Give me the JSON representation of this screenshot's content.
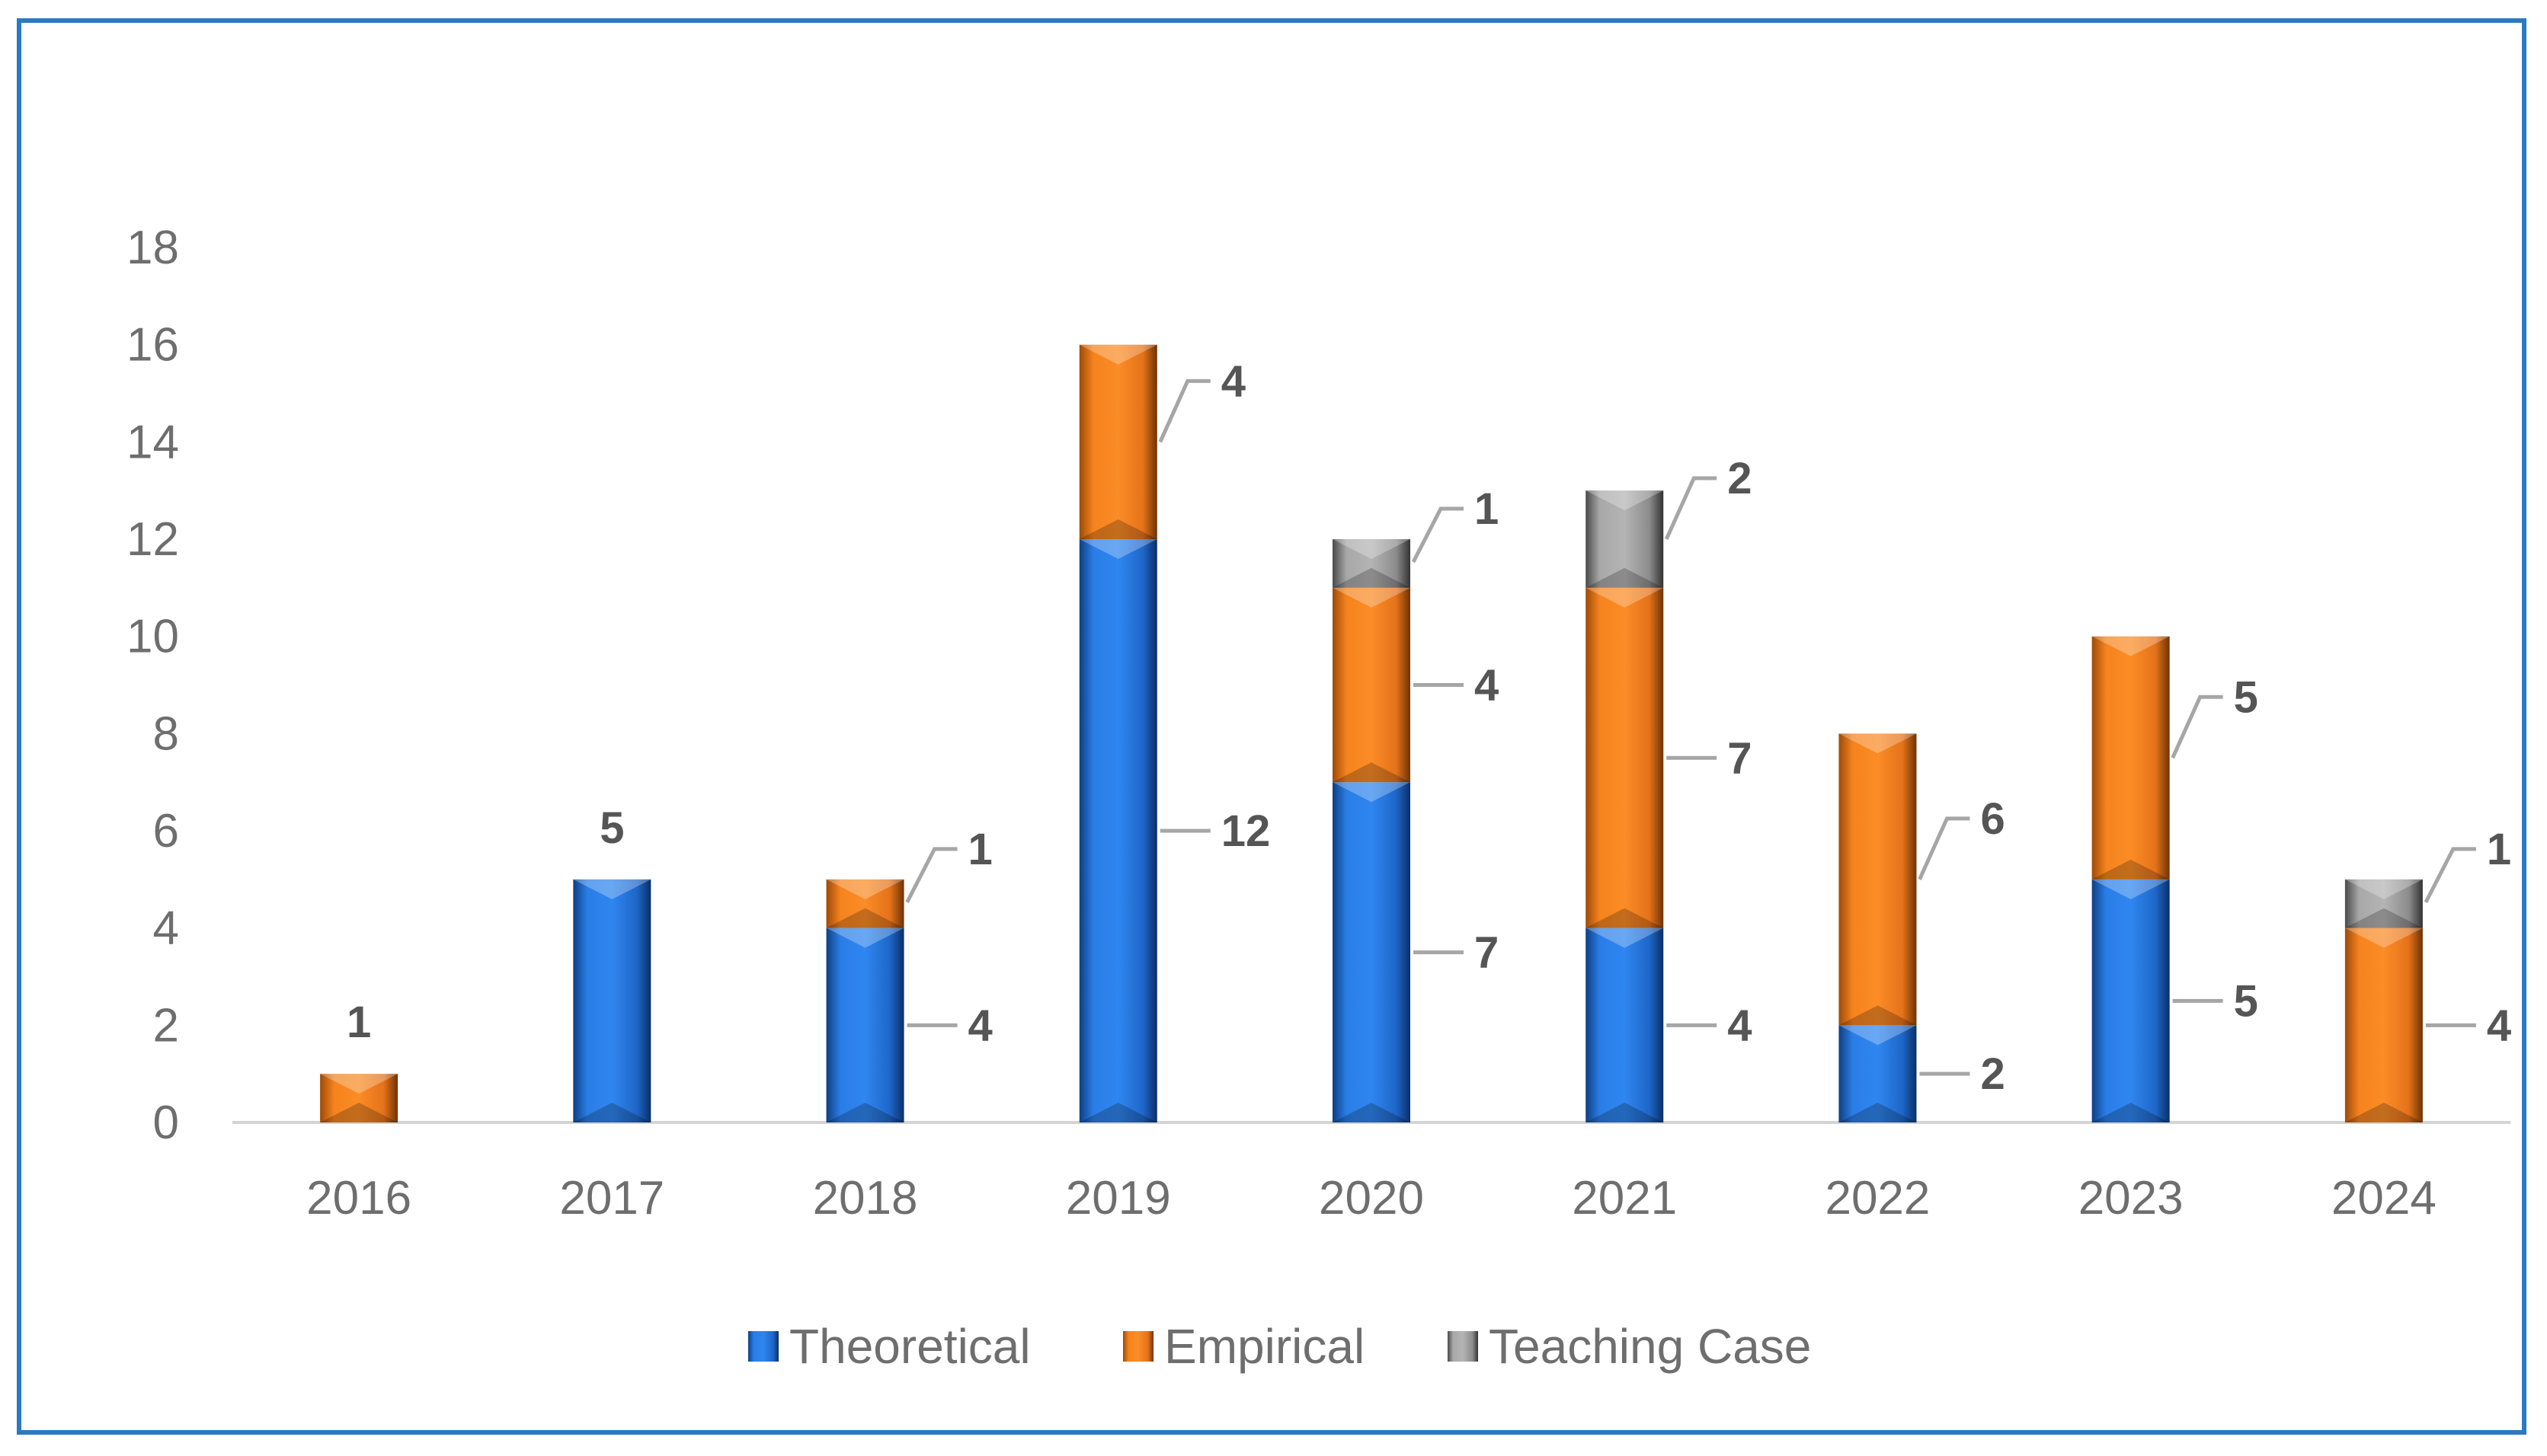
{
  "chart_data": {
    "type": "bar",
    "stacked": true,
    "categories": [
      "2016",
      "2017",
      "2018",
      "2019",
      "2020",
      "2021",
      "2022",
      "2023",
      "2024"
    ],
    "series": [
      {
        "name": "Theoretical",
        "values": [
          0,
          5,
          4,
          12,
          7,
          4,
          2,
          5,
          0
        ],
        "color": "#1f6fd1"
      },
      {
        "name": "Empirical",
        "values": [
          1,
          0,
          1,
          4,
          4,
          7,
          6,
          5,
          4
        ],
        "color": "#f07c1c"
      },
      {
        "name": "Teaching Case",
        "values": [
          0,
          0,
          0,
          0,
          1,
          2,
          0,
          0,
          1
        ],
        "color": "#9a9a9a"
      }
    ],
    "ylim": [
      0,
      18
    ],
    "yticks": [
      0,
      2,
      4,
      6,
      8,
      10,
      12,
      14,
      16,
      18
    ],
    "title": "",
    "xlabel": "",
    "ylabel": "",
    "legend_position": "bottom",
    "grid": false
  }
}
